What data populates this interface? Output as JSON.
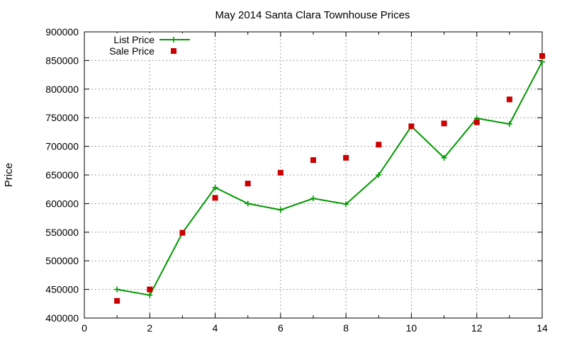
{
  "chart_data": {
    "type": "scatter",
    "title": "May 2014 Santa Clara Townhouse Prices",
    "xlabel": "",
    "ylabel": "Price",
    "xlim": [
      0,
      14
    ],
    "ylim": [
      400000,
      900000
    ],
    "x_ticks": [
      "0",
      "2",
      "4",
      "6",
      "8",
      "10",
      "12",
      "14"
    ],
    "y_ticks": [
      "400000",
      "450000",
      "500000",
      "550000",
      "600000",
      "650000",
      "700000",
      "750000",
      "800000",
      "850000",
      "900000"
    ],
    "grid": true,
    "legend_position": "top-left",
    "series": [
      {
        "name": "List Price",
        "style": "linespoints",
        "marker": "plus",
        "color": "#009900",
        "x": [
          1,
          2,
          3,
          4,
          5,
          6,
          7,
          8,
          9,
          10,
          11,
          12,
          13,
          14
        ],
        "values": [
          450000,
          440000,
          549000,
          628000,
          600000,
          589000,
          609000,
          599000,
          650000,
          735000,
          680000,
          749000,
          739000,
          848000
        ]
      },
      {
        "name": "Sale Price",
        "style": "points",
        "marker": "square",
        "color": "#cc0000",
        "x": [
          1,
          2,
          3,
          4,
          5,
          6,
          7,
          8,
          9,
          10,
          11,
          12,
          13,
          14
        ],
        "values": [
          430000,
          450000,
          549000,
          610000,
          635000,
          654000,
          676000,
          680000,
          703000,
          735000,
          740000,
          742000,
          782000,
          858000
        ]
      }
    ]
  }
}
